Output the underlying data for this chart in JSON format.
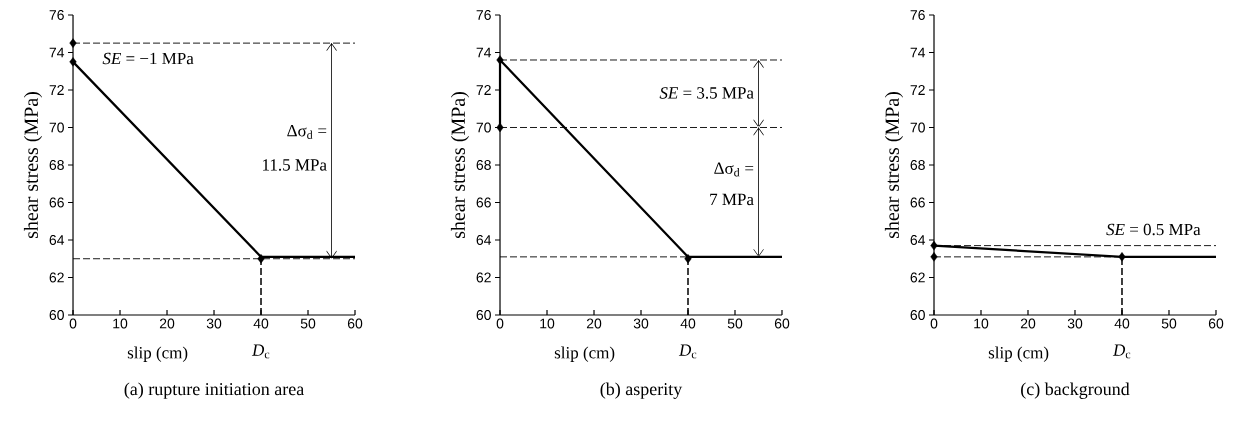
{
  "chart_data": [
    {
      "type": "line",
      "title": "(a) rupture initiation area",
      "xlabel": "slip (cm)",
      "ylabel": "shear stress (MPa)",
      "xlim": [
        0,
        60
      ],
      "ylim": [
        60,
        76
      ],
      "xticks": [
        0,
        10,
        20,
        30,
        40,
        50,
        60
      ],
      "yticks": [
        60,
        62,
        64,
        66,
        68,
        70,
        72,
        74,
        76
      ],
      "series": [
        {
          "x": [
            0,
            40,
            60
          ],
          "values": [
            73.5,
            63.1,
            63.1
          ],
          "color": "#000000",
          "line_style": "solid"
        },
        {
          "type": "scatter",
          "x": [
            0,
            0
          ],
          "values": [
            74.5,
            73.5
          ],
          "color": "#000000",
          "marker": "diamond"
        },
        {
          "type": "lollipop",
          "x": [
            40
          ],
          "values": [
            63
          ],
          "color": "#000000",
          "marker": "diamond",
          "line_style": "dashed"
        }
      ],
      "ref_lines": [
        {
          "axis": "y",
          "value": 74.5,
          "color": "#000000",
          "line_style": "dashed"
        },
        {
          "axis": "y",
          "value": 63.0,
          "color": "#000000",
          "line_style": "dashed"
        }
      ],
      "annotations": [
        "*SE* = −1 MPa",
        "Δσ$_{d}$ =",
        "11.5 MPa",
        "*D*$_{c}$"
      ]
    },
    {
      "type": "line",
      "title": "(b) asperity",
      "xlabel": "slip (cm)",
      "ylabel": "shear stress (MPa)",
      "xlim": [
        0,
        60
      ],
      "ylim": [
        60,
        76
      ],
      "xticks": [
        0,
        10,
        20,
        30,
        40,
        50,
        60
      ],
      "yticks": [
        60,
        62,
        64,
        66,
        68,
        70,
        72,
        74,
        76
      ],
      "series": [
        {
          "x": [
            0,
            0,
            40,
            60
          ],
          "values": [
            70,
            73.6,
            63.1,
            63.1
          ],
          "color": "#000000",
          "line_style": "solid"
        },
        {
          "type": "scatter",
          "x": [
            0,
            0
          ],
          "values": [
            73.6,
            70
          ],
          "color": "#000000",
          "marker": "diamond"
        },
        {
          "type": "lollipop",
          "x": [
            40
          ],
          "values": [
            63
          ],
          "color": "#000000",
          "marker": "diamond",
          "line_style": "dashed"
        }
      ],
      "ref_lines": [
        {
          "axis": "y",
          "value": 73.6,
          "color": "#000000",
          "line_style": "dashed"
        },
        {
          "axis": "y",
          "value": 70,
          "color": "#000000",
          "line_style": "dashed"
        },
        {
          "axis": "y",
          "value": 63.1,
          "color": "#000000",
          "line_style": "dashed"
        }
      ],
      "annotations": [
        "*SE* = 3.5 MPa",
        "Δσ$_{d}$ =",
        "7 MPa",
        "*D*$_{c}$"
      ]
    },
    {
      "type": "line",
      "title": "(c) background",
      "xlabel": "slip (cm)",
      "ylabel": "shear stress (MPa)",
      "xlim": [
        0,
        60
      ],
      "ylim": [
        60,
        76
      ],
      "xticks": [
        0,
        10,
        20,
        30,
        40,
        50,
        60
      ],
      "yticks": [
        60,
        62,
        64,
        66,
        68,
        70,
        72,
        74,
        76
      ],
      "series": [
        {
          "x": [
            0,
            40,
            60
          ],
          "values": [
            63.7,
            63.1,
            63.1
          ],
          "color": "#000000",
          "line_style": "solid"
        },
        {
          "type": "scatter",
          "x": [
            0,
            0
          ],
          "values": [
            63.7,
            63.1
          ],
          "color": "#000000",
          "marker": "diamond"
        },
        {
          "type": "lollipop",
          "x": [
            40
          ],
          "values": [
            63.1
          ],
          "color": "#000000",
          "marker": "diamond",
          "line_style": "dashed"
        }
      ],
      "ref_lines": [
        {
          "axis": "y",
          "value": 63.7,
          "color": "#000000",
          "line_style": "dashed"
        },
        {
          "axis": "y",
          "value": 63.1,
          "color": "#000000",
          "line_style": "dashed"
        }
      ],
      "annotations": [
        "*SE* = 0.5 MPa",
        "*D*$_{c}$"
      ]
    }
  ]
}
